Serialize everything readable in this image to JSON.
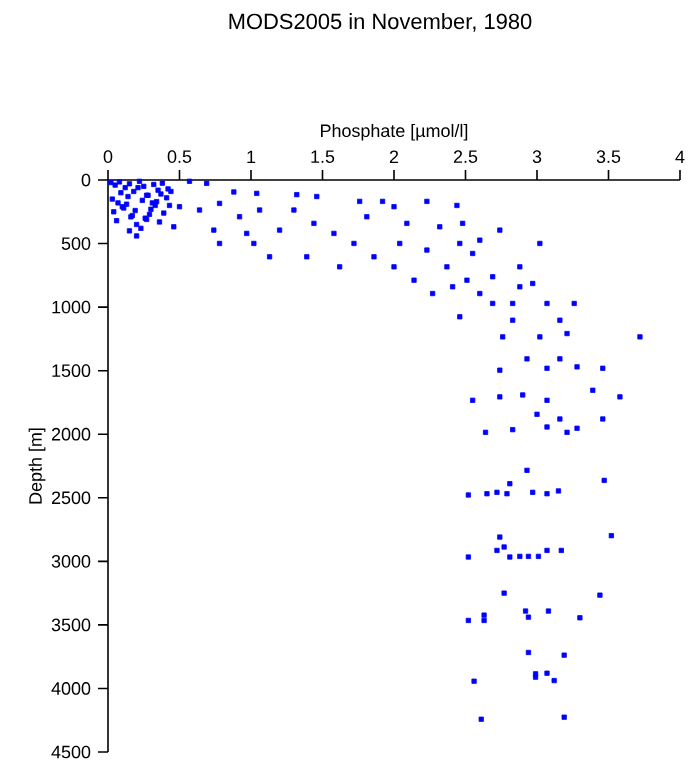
{
  "chart_data": {
    "type": "scatter",
    "title": "MODS2005 in November, 1980",
    "xlabel": "Phosphate [µmol/l]",
    "ylabel": "Depth [m]",
    "xlim": [
      0,
      4
    ],
    "ylim": [
      4500,
      0
    ],
    "xticks": [
      0,
      0.5,
      1,
      1.5,
      2,
      2.5,
      3,
      3.5,
      4
    ],
    "yticks": [
      0,
      500,
      1000,
      1500,
      2000,
      2500,
      3000,
      3500,
      4000,
      4500
    ],
    "marker": "square",
    "series": [
      {
        "color": "#0000ff",
        "x": [
          0.02,
          0.05,
          0.08,
          0.12,
          0.15,
          0.18,
          0.22,
          0.25,
          0.28,
          0.32,
          0.35,
          0.38,
          0.42,
          0.03,
          0.07,
          0.1,
          0.14,
          0.19,
          0.24,
          0.29,
          0.33,
          0.37,
          0.41,
          0.04,
          0.09,
          0.13,
          0.17,
          0.21,
          0.26,
          0.3,
          0.34,
          0.39,
          0.44,
          0.06,
          0.11,
          0.16,
          0.2,
          0.27,
          0.31,
          0.36,
          0.43,
          0.23,
          0.15,
          0.27,
          0.2,
          0.46,
          0.5,
          0.57,
          0.69,
          0.64,
          0.78,
          0.88,
          0.92,
          1.04,
          1.06,
          1.2,
          1.3,
          1.32,
          1.44,
          1.46,
          1.58,
          0.74,
          0.97,
          0.78,
          1.02,
          1.13,
          1.39,
          1.62,
          1.72,
          1.76,
          1.81,
          1.86,
          1.92,
          2.0,
          2.0,
          2.04,
          2.09,
          2.14,
          2.23,
          2.23,
          2.27,
          2.32,
          2.37,
          2.41,
          2.44,
          2.46,
          2.48,
          2.51,
          2.55,
          2.6,
          2.6,
          2.69,
          2.74,
          2.69,
          2.83,
          2.88,
          2.88,
          2.97,
          3.02,
          3.07,
          3.26,
          2.46,
          2.83,
          3.16,
          2.76,
          3.02,
          3.21,
          3.72,
          2.74,
          2.93,
          3.07,
          3.16,
          3.28,
          3.46,
          2.55,
          2.74,
          2.9,
          3.07,
          3.39,
          3.58,
          2.64,
          2.83,
          3.0,
          3.07,
          3.16,
          3.28,
          3.46,
          3.21,
          2.93,
          2.52,
          2.65,
          2.72,
          2.79,
          2.81,
          2.97,
          3.07,
          3.15,
          3.47,
          2.52,
          2.74,
          2.72,
          2.77,
          2.81,
          2.88,
          2.94,
          3.01,
          3.07,
          3.17,
          3.52,
          2.77,
          2.52,
          2.63,
          2.63,
          2.92,
          2.94,
          3.08,
          3.3,
          3.44,
          2.94,
          3.19,
          2.56,
          2.99,
          2.99,
          3.07,
          3.12,
          2.61,
          3.19
        ],
        "values": [
          20,
          40,
          15,
          60,
          30,
          90,
          10,
          50,
          120,
          35,
          80,
          25,
          70,
          150,
          180,
          210,
          130,
          240,
          160,
          270,
          200,
          110,
          140,
          250,
          100,
          190,
          280,
          60,
          300,
          230,
          170,
          260,
          90,
          320,
          220,
          290,
          350,
          310,
          180,
          330,
          200,
          380,
          400,
          120,
          440,
          368,
          210,
          10,
          26,
          236,
          184,
          94,
          289,
          105,
          236,
          394,
          236,
          115,
          341,
          130,
          420,
          394,
          420,
          499,
          499,
          604,
          604,
          683,
          499,
          168,
          289,
          604,
          168,
          210,
          683,
          499,
          341,
          788,
          168,
          551,
          893,
          368,
          683,
          840,
          200,
          499,
          341,
          788,
          578,
          473,
          893,
          971,
          394,
          761,
          971,
          683,
          840,
          814,
          499,
          971,
          971,
          1076,
          1103,
          1103,
          1234,
          1234,
          1208,
          1234,
          1496,
          1407,
          1481,
          1407,
          1470,
          1481,
          1733,
          1706,
          1691,
          1733,
          1654,
          1706,
          1985,
          1964,
          1843,
          1943,
          1880,
          1953,
          1880,
          1985,
          2284,
          2478,
          2468,
          2457,
          2468,
          2389,
          2457,
          2468,
          2446,
          2363,
          2966,
          2809,
          2914,
          2887,
          2966,
          2961,
          2961,
          2961,
          2914,
          2914,
          2798,
          3250,
          3465,
          3423,
          3465,
          3391,
          3439,
          3391,
          3444,
          3266,
          3717,
          3738,
          3943,
          3911,
          3885,
          3880,
          3938,
          4242,
          4226
        ]
      }
    ]
  }
}
